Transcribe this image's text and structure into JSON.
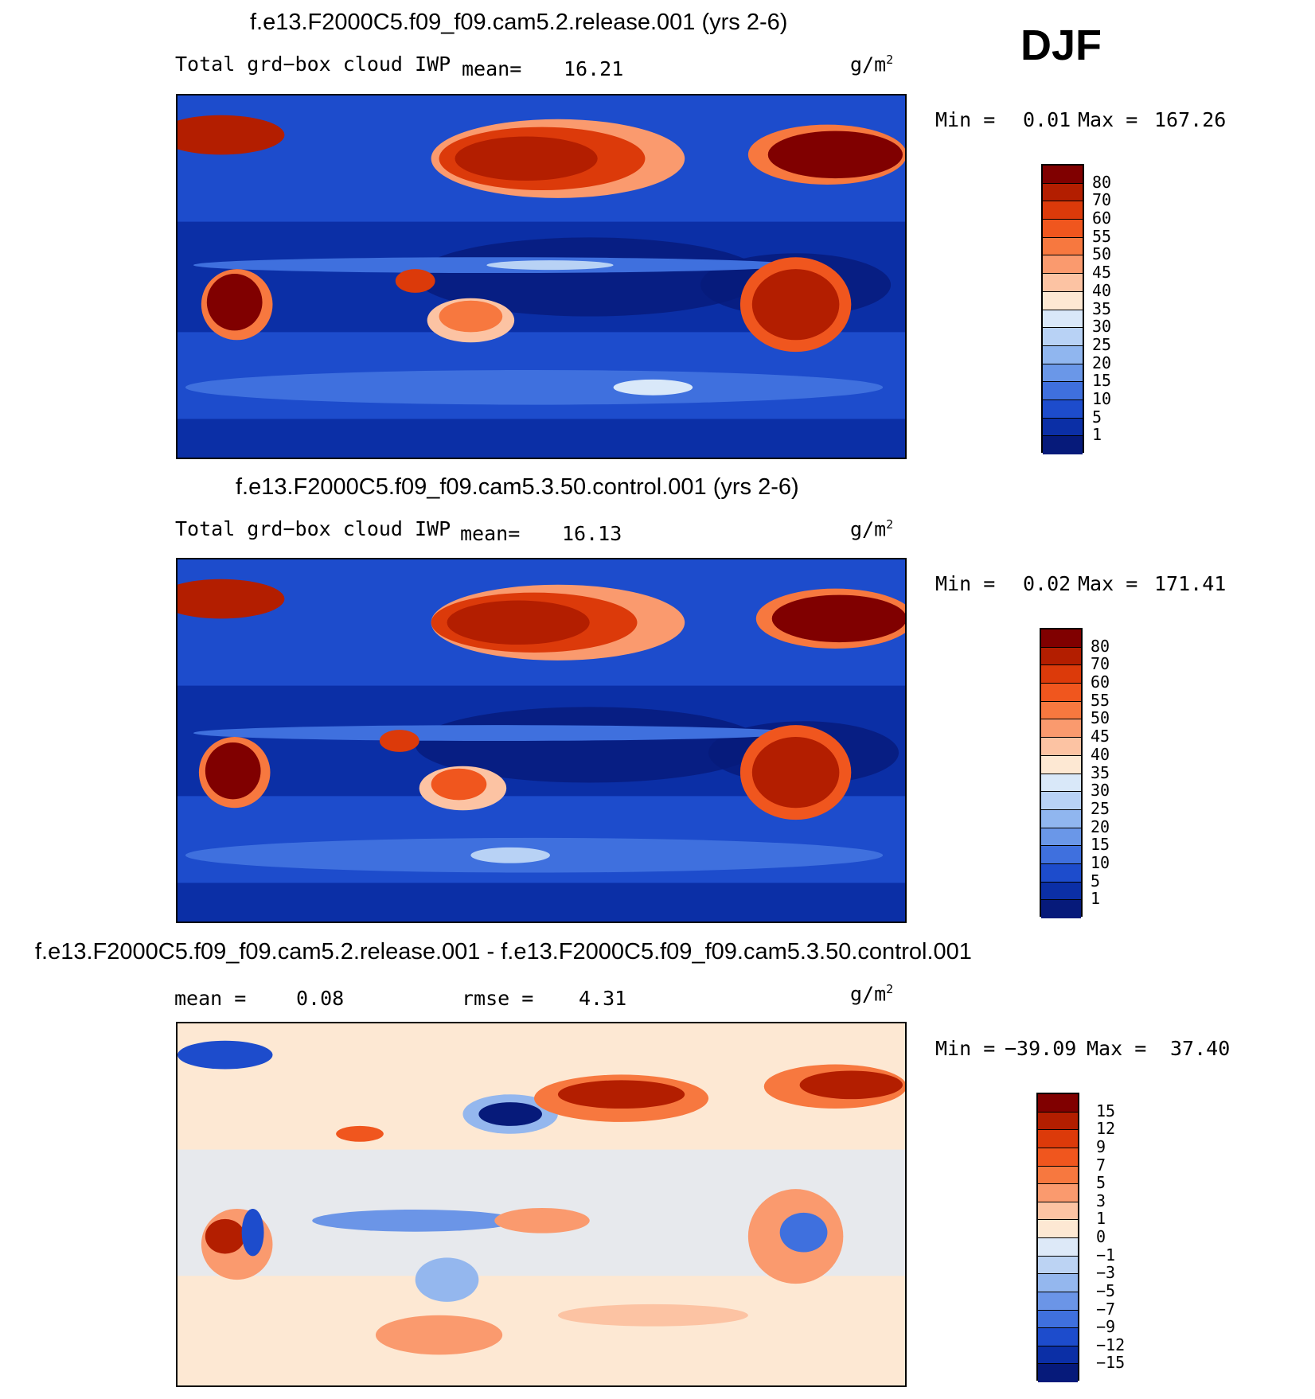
{
  "season": "DJF",
  "panels": [
    {
      "title": "f.e13.F2000C5.f09_f09.cam5.2.release.001 (yrs 2-6)",
      "variable": "Total grd−box cloud IWP",
      "stat1_label": "mean=",
      "stat1_value": "16.21",
      "units": "g/m",
      "units_sup": "2",
      "min_label": "Min =",
      "min_value": "0.01",
      "max_label": "Max =",
      "max_value": "167.26",
      "levels": [
        "80",
        "70",
        "60",
        "55",
        "50",
        "45",
        "40",
        "35",
        "30",
        "25",
        "20",
        "15",
        "10",
        "5",
        "1"
      ],
      "colors": [
        "#800000",
        "#b31e00",
        "#dc3a0a",
        "#f0561e",
        "#f7783f",
        "#fa9a6e",
        "#fcc3a3",
        "#fde8d3",
        "#d9e8f9",
        "#b8d2f5",
        "#90b6ef",
        "#6a97e8",
        "#3f70de",
        "#1d4ccc",
        "#0b2fa6",
        "#061a7a"
      ]
    },
    {
      "title": "f.e13.F2000C5.f09_f09.cam5.3.50.control.001 (yrs 2-6)",
      "variable": "Total grd−box cloud IWP",
      "stat1_label": "mean=",
      "stat1_value": "16.13",
      "units": "g/m",
      "units_sup": "2",
      "min_label": "Min =",
      "min_value": "0.02",
      "max_label": "Max =",
      "max_value": "171.41",
      "levels": [
        "80",
        "70",
        "60",
        "55",
        "50",
        "45",
        "40",
        "35",
        "30",
        "25",
        "20",
        "15",
        "10",
        "5",
        "1"
      ],
      "colors": [
        "#800000",
        "#b31e00",
        "#dc3a0a",
        "#f0561e",
        "#f7783f",
        "#fa9a6e",
        "#fcc3a3",
        "#fde8d3",
        "#d9e8f9",
        "#b8d2f5",
        "#90b6ef",
        "#6a97e8",
        "#3f70de",
        "#1d4ccc",
        "#0b2fa6",
        "#061a7a"
      ]
    },
    {
      "title": "f.e13.F2000C5.f09_f09.cam5.2.release.001 - f.e13.F2000C5.f09_f09.cam5.3.50.control.001",
      "stat1_label": "mean =",
      "stat1_value": "0.08",
      "stat2_label": "rmse =",
      "stat2_value": "4.31",
      "units": "g/m",
      "units_sup": "2",
      "min_label": "Min =",
      "min_value": "−39.09",
      "max_label": "Max =",
      "max_value": "37.40",
      "levels": [
        "15",
        "12",
        "9",
        "7",
        "5",
        "3",
        "1",
        "0",
        "−1",
        "−3",
        "−5",
        "−7",
        "−9",
        "−12",
        "−15"
      ],
      "colors": [
        "#800000",
        "#b31e00",
        "#dc3a0a",
        "#f0561e",
        "#f7783f",
        "#fa9a6e",
        "#fcc3a3",
        "#fde8d3",
        "#dde9f8",
        "#bcd3f3",
        "#94b7ee",
        "#6b95e7",
        "#3f70de",
        "#1d4ccc",
        "#0b2fa6",
        "#061a7a"
      ]
    }
  ]
}
